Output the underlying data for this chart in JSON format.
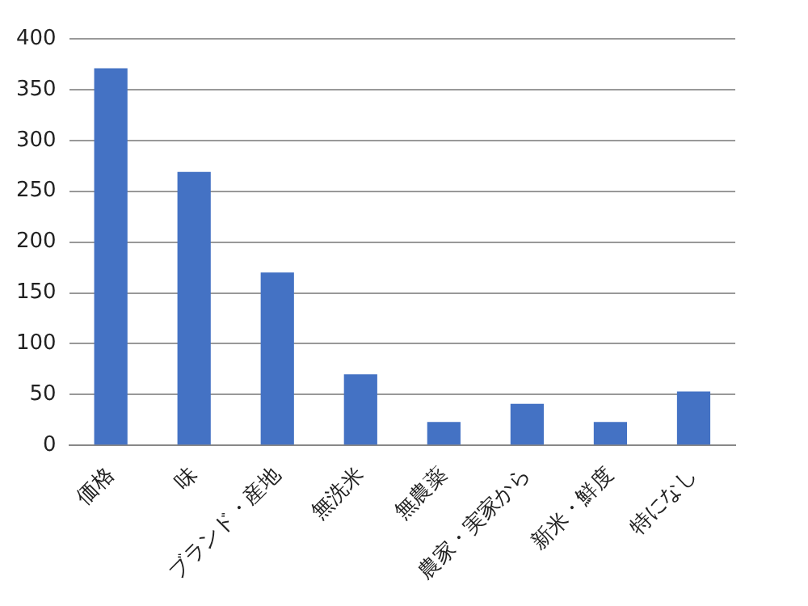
{
  "chart_data": {
    "type": "bar",
    "categories": [
      "価格",
      "味",
      "ブランド・産地",
      "無洗米",
      "無農薬",
      "農家・実家から",
      "新米・鮮度",
      "特になし"
    ],
    "values": [
      371,
      269,
      170,
      70,
      23,
      41,
      23,
      53
    ],
    "color": "#4472c4",
    "ylim": [
      0,
      400
    ],
    "yticks": [
      0,
      50,
      100,
      150,
      200,
      250,
      300,
      350,
      400
    ],
    "grid": "y",
    "legend": false
  }
}
